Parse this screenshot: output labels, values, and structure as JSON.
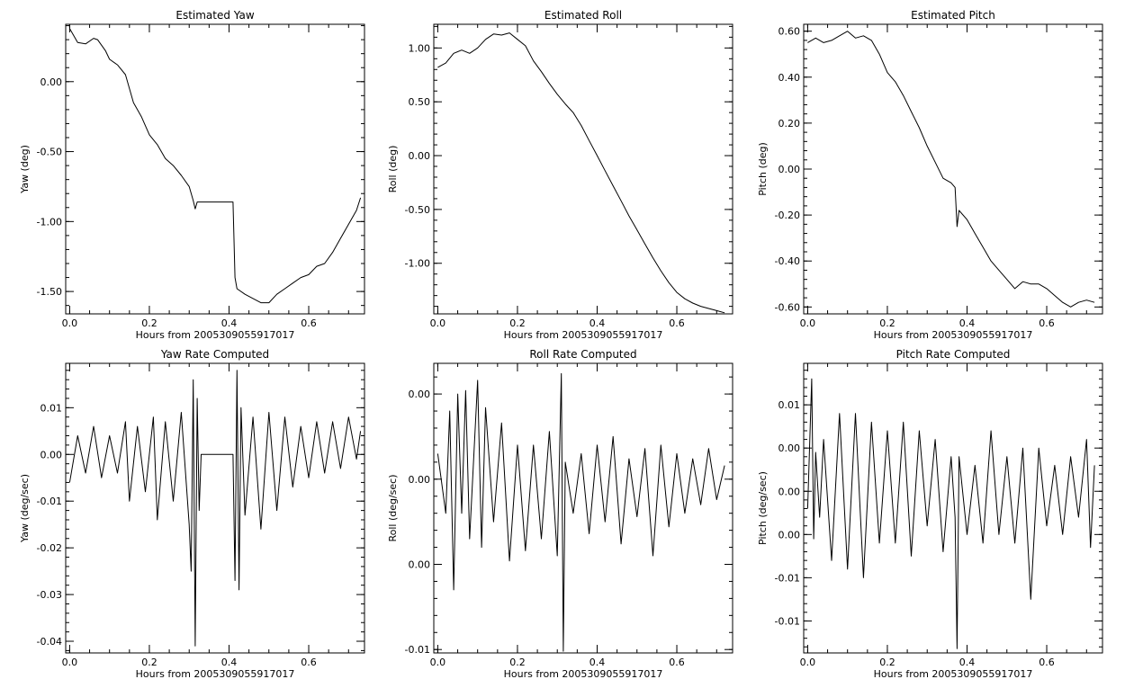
{
  "chart_data": [
    {
      "id": "yaw",
      "type": "line",
      "title": "Estimated Yaw",
      "xlabel": "Hours from 2005309055917017",
      "ylabel": "Yaw (deg)",
      "xlim": [
        -0.01,
        0.74
      ],
      "ylim": [
        -1.66,
        0.41
      ],
      "xticks": [
        {
          "v": 0.0,
          "label": "0.0"
        },
        {
          "v": 0.2,
          "label": "0.2"
        },
        {
          "v": 0.4,
          "label": "0.4"
        },
        {
          "v": 0.6,
          "label": "0.6"
        }
      ],
      "yticks": [
        {
          "v": 0.0,
          "label": "0.00"
        },
        {
          "v": -0.5,
          "label": "-0.50"
        },
        {
          "v": -1.0,
          "label": "-1.00"
        },
        {
          "v": -1.5,
          "label": "-1.50"
        }
      ],
      "series": [
        {
          "x": [
            0.0,
            0.02,
            0.04,
            0.06,
            0.07,
            0.09,
            0.1,
            0.12,
            0.14,
            0.16,
            0.18,
            0.2,
            0.22,
            0.24,
            0.26,
            0.28,
            0.3,
            0.31,
            0.315,
            0.32,
            0.41,
            0.415,
            0.42,
            0.44,
            0.46,
            0.48,
            0.5,
            0.52,
            0.54,
            0.56,
            0.58,
            0.6,
            0.62,
            0.64,
            0.66,
            0.68,
            0.7,
            0.72,
            0.73
          ],
          "y": [
            0.38,
            0.28,
            0.27,
            0.31,
            0.3,
            0.22,
            0.16,
            0.12,
            0.05,
            -0.15,
            -0.25,
            -0.38,
            -0.45,
            -0.55,
            -0.6,
            -0.67,
            -0.75,
            -0.85,
            -0.91,
            -0.86,
            -0.86,
            -1.4,
            -1.48,
            -1.52,
            -1.55,
            -1.58,
            -1.58,
            -1.52,
            -1.48,
            -1.44,
            -1.4,
            -1.38,
            -1.32,
            -1.3,
            -1.22,
            -1.12,
            -1.02,
            -0.92,
            -0.83
          ]
        }
      ]
    },
    {
      "id": "roll",
      "type": "line",
      "title": "Estimated Roll",
      "xlabel": "Hours from 2005309055917017",
      "ylabel": "Roll (deg)",
      "xlim": [
        -0.01,
        0.74
      ],
      "ylim": [
        -1.47,
        1.22
      ],
      "xticks": [
        {
          "v": 0.0,
          "label": "0.0"
        },
        {
          "v": 0.2,
          "label": "0.2"
        },
        {
          "v": 0.4,
          "label": "0.4"
        },
        {
          "v": 0.6,
          "label": "0.6"
        }
      ],
      "yticks": [
        {
          "v": 1.0,
          "label": "1.00"
        },
        {
          "v": 0.5,
          "label": "0.50"
        },
        {
          "v": 0.0,
          "label": "0.00"
        },
        {
          "v": -0.5,
          "label": "-0.50"
        },
        {
          "v": -1.0,
          "label": "-1.00"
        }
      ],
      "series": [
        {
          "x": [
            0.0,
            0.02,
            0.04,
            0.06,
            0.08,
            0.1,
            0.12,
            0.14,
            0.16,
            0.18,
            0.2,
            0.22,
            0.24,
            0.26,
            0.28,
            0.3,
            0.32,
            0.34,
            0.36,
            0.38,
            0.4,
            0.42,
            0.44,
            0.46,
            0.48,
            0.5,
            0.52,
            0.54,
            0.56,
            0.58,
            0.6,
            0.62,
            0.64,
            0.66,
            0.68,
            0.7,
            0.72
          ],
          "y": [
            0.82,
            0.86,
            0.95,
            0.98,
            0.95,
            1.0,
            1.08,
            1.13,
            1.12,
            1.14,
            1.08,
            1.02,
            0.88,
            0.78,
            0.67,
            0.57,
            0.48,
            0.4,
            0.28,
            0.14,
            0.0,
            -0.14,
            -0.28,
            -0.42,
            -0.56,
            -0.69,
            -0.82,
            -0.95,
            -1.07,
            -1.18,
            -1.27,
            -1.33,
            -1.37,
            -1.4,
            -1.42,
            -1.44,
            -1.46
          ]
        }
      ]
    },
    {
      "id": "pitch",
      "type": "line",
      "title": "Estimated Pitch",
      "xlabel": "Hours from 2005309055917017",
      "ylabel": "Pitch (deg)",
      "xlim": [
        -0.01,
        0.74
      ],
      "ylim": [
        -0.63,
        0.63
      ],
      "xticks": [
        {
          "v": 0.0,
          "label": "0.0"
        },
        {
          "v": 0.2,
          "label": "0.2"
        },
        {
          "v": 0.4,
          "label": "0.4"
        },
        {
          "v": 0.6,
          "label": "0.6"
        }
      ],
      "yticks": [
        {
          "v": 0.6,
          "label": "0.60"
        },
        {
          "v": 0.4,
          "label": "0.40"
        },
        {
          "v": 0.2,
          "label": "0.20"
        },
        {
          "v": 0.0,
          "label": "0.00"
        },
        {
          "v": -0.2,
          "label": "-0.20"
        },
        {
          "v": -0.4,
          "label": "-0.40"
        },
        {
          "v": -0.6,
          "label": "-0.60"
        }
      ],
      "series": [
        {
          "x": [
            0.0,
            0.02,
            0.04,
            0.06,
            0.08,
            0.1,
            0.12,
            0.14,
            0.16,
            0.18,
            0.2,
            0.22,
            0.24,
            0.26,
            0.28,
            0.3,
            0.32,
            0.34,
            0.36,
            0.37,
            0.375,
            0.38,
            0.4,
            0.42,
            0.44,
            0.46,
            0.48,
            0.5,
            0.52,
            0.54,
            0.56,
            0.58,
            0.6,
            0.62,
            0.64,
            0.66,
            0.68,
            0.7,
            0.72
          ],
          "y": [
            0.55,
            0.57,
            0.55,
            0.56,
            0.58,
            0.6,
            0.57,
            0.58,
            0.56,
            0.5,
            0.42,
            0.38,
            0.32,
            0.25,
            0.18,
            0.1,
            0.03,
            -0.04,
            -0.06,
            -0.08,
            -0.25,
            -0.18,
            -0.22,
            -0.28,
            -0.34,
            -0.4,
            -0.44,
            -0.48,
            -0.52,
            -0.49,
            -0.5,
            -0.5,
            -0.52,
            -0.55,
            -0.58,
            -0.6,
            -0.58,
            -0.57,
            -0.58
          ]
        }
      ]
    },
    {
      "id": "yaw_rate",
      "type": "line",
      "title": "Yaw Rate Computed",
      "xlabel": "Hours from 2005309055917017",
      "ylabel": "Yaw (deg/sec)",
      "xlim": [
        -0.01,
        0.74
      ],
      "ylim": [
        -0.0425,
        0.0195
      ],
      "xticks": [
        {
          "v": 0.0,
          "label": "0.0"
        },
        {
          "v": 0.2,
          "label": "0.2"
        },
        {
          "v": 0.4,
          "label": "0.4"
        },
        {
          "v": 0.6,
          "label": "0.6"
        }
      ],
      "yticks": [
        {
          "v": 0.01,
          "label": "0.01"
        },
        {
          "v": 0.0,
          "label": "0.00"
        },
        {
          "v": -0.01,
          "label": "-0.01"
        },
        {
          "v": -0.02,
          "label": "-0.02"
        },
        {
          "v": -0.03,
          "label": "-0.03"
        },
        {
          "v": -0.04,
          "label": "-0.04"
        }
      ],
      "series": [
        {
          "x": [
            0.0,
            0.02,
            0.04,
            0.06,
            0.08,
            0.1,
            0.12,
            0.14,
            0.15,
            0.17,
            0.19,
            0.21,
            0.22,
            0.24,
            0.26,
            0.28,
            0.3,
            0.305,
            0.31,
            0.315,
            0.32,
            0.325,
            0.33,
            0.41,
            0.415,
            0.42,
            0.425,
            0.43,
            0.44,
            0.46,
            0.48,
            0.5,
            0.52,
            0.54,
            0.56,
            0.58,
            0.6,
            0.62,
            0.64,
            0.66,
            0.68,
            0.7,
            0.72,
            0.73
          ],
          "y": [
            -0.006,
            0.004,
            -0.004,
            0.006,
            -0.005,
            0.004,
            -0.004,
            0.007,
            -0.01,
            0.006,
            -0.008,
            0.008,
            -0.014,
            0.007,
            -0.01,
            0.009,
            -0.015,
            -0.025,
            0.016,
            -0.041,
            0.012,
            -0.012,
            0.0,
            0.0,
            -0.027,
            0.018,
            -0.029,
            0.01,
            -0.013,
            0.008,
            -0.016,
            0.009,
            -0.012,
            0.008,
            -0.007,
            0.006,
            -0.005,
            0.007,
            -0.004,
            0.007,
            -0.003,
            0.008,
            -0.001,
            0.005
          ]
        }
      ]
    },
    {
      "id": "roll_rate",
      "type": "line",
      "title": "Roll Rate Computed",
      "xlabel": "Hours from 2005309055917017",
      "ylabel": "Roll (deg/sec)",
      "xlim": [
        -0.01,
        0.74
      ],
      "ylim": [
        -0.0102,
        0.0068
      ],
      "xticks": [
        {
          "v": 0.0,
          "label": "0.0"
        },
        {
          "v": 0.2,
          "label": "0.2"
        },
        {
          "v": 0.4,
          "label": "0.4"
        },
        {
          "v": 0.6,
          "label": "0.6"
        }
      ],
      "yticks": [
        {
          "v": 0.005,
          "label": "0.00"
        },
        {
          "v": 0.0,
          "label": "0.00"
        },
        {
          "v": -0.005,
          "label": "0.00"
        },
        {
          "v": -0.01,
          "label": "-0.01"
        }
      ],
      "series": [
        {
          "x": [
            0.0,
            0.02,
            0.03,
            0.04,
            0.05,
            0.06,
            0.07,
            0.08,
            0.1,
            0.11,
            0.12,
            0.14,
            0.16,
            0.18,
            0.2,
            0.22,
            0.24,
            0.26,
            0.28,
            0.3,
            0.31,
            0.315,
            0.32,
            0.34,
            0.36,
            0.38,
            0.4,
            0.42,
            0.44,
            0.46,
            0.48,
            0.5,
            0.52,
            0.54,
            0.56,
            0.58,
            0.6,
            0.62,
            0.64,
            0.66,
            0.68,
            0.7,
            0.72
          ],
          "y": [
            0.0015,
            -0.002,
            0.004,
            -0.0065,
            0.005,
            -0.002,
            0.0052,
            -0.0035,
            0.0058,
            -0.004,
            0.0042,
            -0.0025,
            0.0033,
            -0.0048,
            0.002,
            -0.0042,
            0.002,
            -0.0035,
            0.0028,
            -0.0045,
            0.0062,
            -0.0101,
            0.001,
            -0.002,
            0.0015,
            -0.0032,
            0.002,
            -0.0025,
            0.0025,
            -0.0038,
            0.0012,
            -0.0022,
            0.0018,
            -0.0045,
            0.002,
            -0.0028,
            0.0015,
            -0.002,
            0.0012,
            -0.0015,
            0.0018,
            -0.0012,
            0.0008
          ]
        }
      ]
    },
    {
      "id": "pitch_rate",
      "type": "line",
      "title": "Pitch Rate Computed",
      "xlabel": "Hours from 2005309055917017",
      "ylabel": "Pitch (deg/sec)",
      "xlim": [
        -0.01,
        0.74
      ],
      "ylim": [
        -0.0187,
        0.0148
      ],
      "xticks": [
        {
          "v": 0.0,
          "label": "0.0"
        },
        {
          "v": 0.2,
          "label": "0.2"
        },
        {
          "v": 0.4,
          "label": "0.4"
        },
        {
          "v": 0.6,
          "label": "0.6"
        }
      ],
      "yticks": [
        {
          "v": 0.01,
          "label": "0.01"
        },
        {
          "v": 0.005,
          "label": "0.00"
        },
        {
          "v": 0.0,
          "label": "0.00"
        },
        {
          "v": -0.005,
          "label": "0.00"
        },
        {
          "v": -0.01,
          "label": "-0.01"
        },
        {
          "v": -0.015,
          "label": "-0.01"
        }
      ],
      "series": [
        {
          "x": [
            0.0,
            0.01,
            0.015,
            0.02,
            0.03,
            0.04,
            0.06,
            0.08,
            0.1,
            0.12,
            0.14,
            0.16,
            0.18,
            0.2,
            0.22,
            0.24,
            0.26,
            0.28,
            0.3,
            0.32,
            0.34,
            0.36,
            0.37,
            0.375,
            0.38,
            0.4,
            0.42,
            0.44,
            0.46,
            0.48,
            0.5,
            0.52,
            0.54,
            0.56,
            0.58,
            0.6,
            0.62,
            0.64,
            0.66,
            0.68,
            0.7,
            0.71,
            0.72
          ],
          "y": [
            -0.002,
            0.013,
            -0.0055,
            0.0045,
            -0.003,
            0.006,
            -0.008,
            0.009,
            -0.009,
            0.009,
            -0.01,
            0.008,
            -0.006,
            0.007,
            -0.006,
            0.008,
            -0.0075,
            0.007,
            -0.004,
            0.006,
            -0.007,
            0.004,
            -0.003,
            -0.0182,
            0.004,
            -0.005,
            0.003,
            -0.006,
            0.007,
            -0.005,
            0.004,
            -0.006,
            0.005,
            -0.0125,
            0.005,
            -0.004,
            0.003,
            -0.005,
            0.004,
            -0.003,
            0.006,
            -0.0065,
            0.003
          ]
        }
      ]
    }
  ]
}
